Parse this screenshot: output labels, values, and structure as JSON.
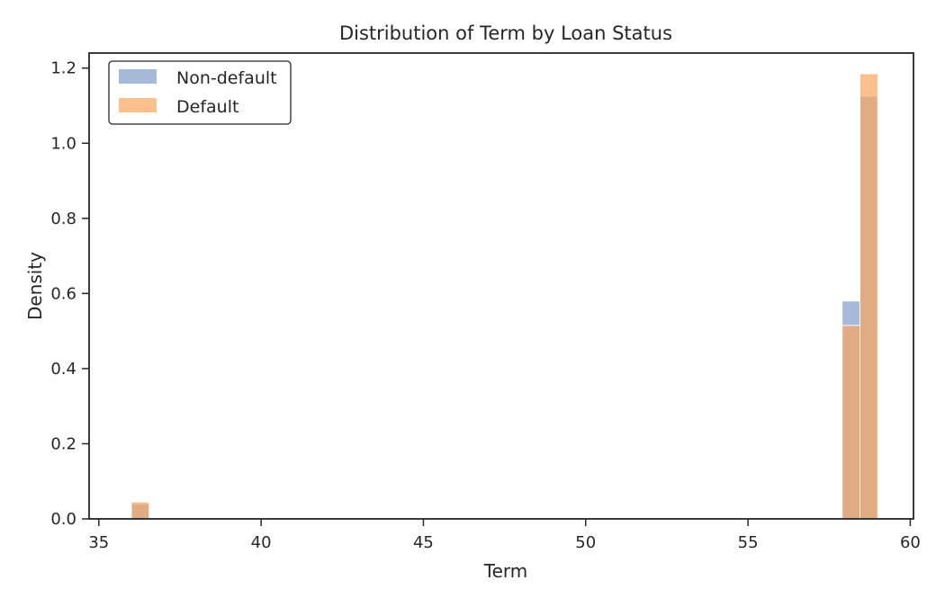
{
  "chart_data": {
    "type": "bar",
    "title": "Distribution of Term by Loan Status",
    "xlabel": "Term",
    "ylabel": "Density",
    "xlim": [
      34.7,
      60.1
    ],
    "ylim": [
      0,
      1.24
    ],
    "xticks": [
      35,
      40,
      45,
      50,
      55,
      60
    ],
    "yticks": [
      0.0,
      0.2,
      0.4,
      0.6,
      0.8,
      1.0,
      1.2
    ],
    "xtick_labels": [
      "35",
      "40",
      "45",
      "50",
      "55",
      "60"
    ],
    "ytick_labels": [
      "0.0",
      "0.2",
      "0.4",
      "0.6",
      "0.8",
      "1.0",
      "1.2"
    ],
    "grid": false,
    "legend_position": "top-left",
    "series": [
      {
        "name": "Non-default",
        "color": "#7d9cc8",
        "bins": [
          {
            "x0": 36.0,
            "x1": 36.55,
            "value": 0.04
          },
          {
            "x0": 57.9,
            "x1": 58.45,
            "value": 0.58
          },
          {
            "x0": 58.45,
            "x1": 59.0,
            "value": 1.125
          }
        ]
      },
      {
        "name": "Default",
        "color": "#fba55f",
        "bins": [
          {
            "x0": 36.0,
            "x1": 36.55,
            "value": 0.045
          },
          {
            "x0": 57.9,
            "x1": 58.45,
            "value": 0.515
          },
          {
            "x0": 58.45,
            "x1": 59.0,
            "value": 1.185
          }
        ]
      }
    ]
  }
}
